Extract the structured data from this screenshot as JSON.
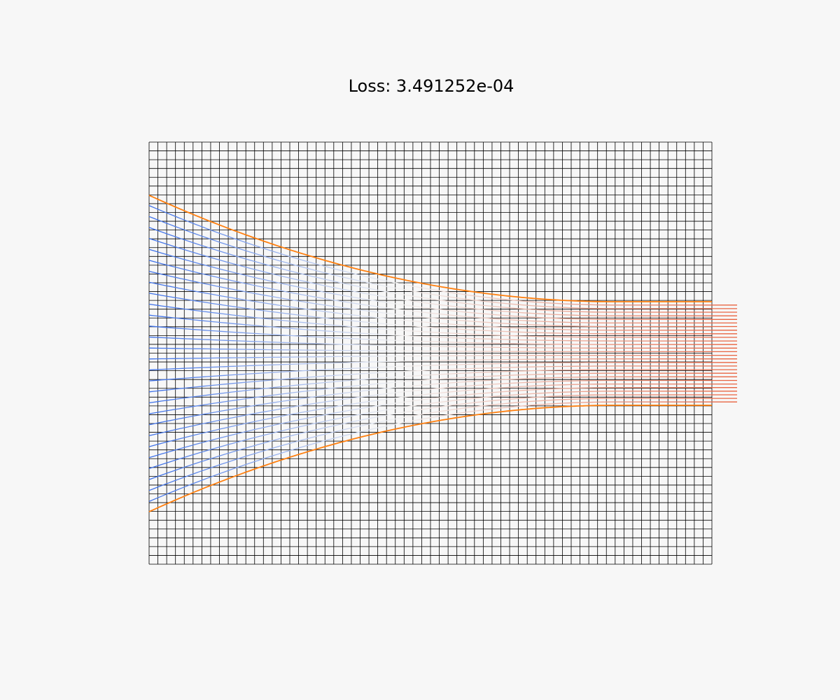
{
  "title": "Loss: 3.491252e-04",
  "colors": {
    "background": "#f7f7f7",
    "grid": "#000000",
    "boundary": "#ff7f0e",
    "flow_low": "#3b6fe8",
    "flow_mid": "#f2f2f2",
    "flow_high": "#e8603c"
  },
  "diagram": {
    "grid_columns": 64,
    "grid_rows": 48,
    "flow_lines": 28,
    "boundary_curves": 2
  }
}
